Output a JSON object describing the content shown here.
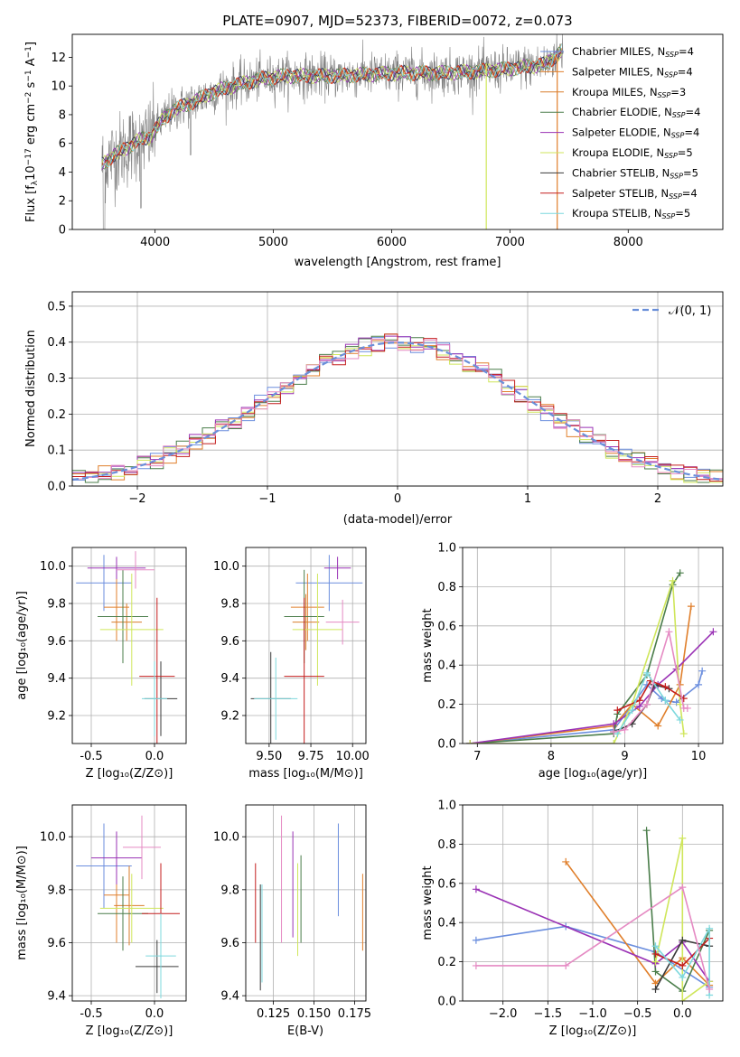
{
  "title": "PLATE=0907, MJD=52373, FIBERID=0072, z=0.073",
  "colors": {
    "gray": "#808080",
    "cms": "#6b8ede",
    "sms": "#e07f2b",
    "kms": "#d97e2b",
    "ce": "#4a7d4a",
    "se": "#9a32b5",
    "ke": "#cfe65b",
    "cs": "#3a3a3a",
    "ss": "#c41e1e",
    "ks": "#7dd8dd",
    "pink": "#e58ac3",
    "dash": "#6a8fd9"
  },
  "labels": {
    "p1_x": "wavelength [Angstrom, rest frame]",
    "p1_y_html": "Flux [f<tspan baseline-shift='-30%' font-size='9px'>λ</tspan>10<tspan baseline-shift='40%' font-size='9px'>−17</tspan> erg cm<tspan baseline-shift='40%' font-size='9px'>−2</tspan> s<tspan baseline-shift='40%' font-size='9px'>−1</tspan> A<tspan baseline-shift='40%' font-size='9px'>−1</tspan>]",
    "p2_x": "(data-model)/error",
    "p2_y": "Normed distribution",
    "gauss_legend": "𝒩(0, 1)",
    "z_x": "Z [log₁₀(Z/Z⊙)]",
    "mass_x": "mass [log₁₀(M/M⊙)]",
    "age_y": "age  [log₁₀(age/yr)]",
    "age_x": "age  [log₁₀(age/yr)]",
    "mass_y": "mass [log₁₀(M/M⊙)]",
    "mw_y": "mass weight",
    "ebv_x": "E(B-V)"
  },
  "legend": [
    {
      "text": "Chabrier MILES, N",
      "sub": "SSP",
      "tail": "=4",
      "color": "cms"
    },
    {
      "text": "Salpeter MILES, N",
      "sub": "SSP",
      "tail": "=4",
      "color": "sms"
    },
    {
      "text": "Kroupa MILES, N",
      "sub": "SSP",
      "tail": "=3",
      "color": "kms"
    },
    {
      "text": "Chabrier ELODIE, N",
      "sub": "SSP",
      "tail": "=4",
      "color": "ce"
    },
    {
      "text": "Salpeter ELODIE, N",
      "sub": "SSP",
      "tail": "=4",
      "color": "se"
    },
    {
      "text": "Kroupa ELODIE, N",
      "sub": "SSP",
      "tail": "=5",
      "color": "ke"
    },
    {
      "text": "Chabrier STELIB, N",
      "sub": "SSP",
      "tail": "=5",
      "color": "cs"
    },
    {
      "text": "Salpeter STELIB, N",
      "sub": "SSP",
      "tail": "=4",
      "color": "ss"
    },
    {
      "text": "Kroupa STELIB, N",
      "sub": "SSP",
      "tail": "=5",
      "color": "ks"
    }
  ],
  "chart_data": [
    {
      "type": "line",
      "title": "PLATE=0907, MJD=52373, FIBERID=0072, z=0.073",
      "xlim": [
        3300,
        8800
      ],
      "ylim": [
        0,
        13.6
      ],
      "xticks": [
        4000,
        5000,
        6000,
        7000,
        8000
      ],
      "yticks": [
        0,
        2,
        4,
        6,
        8,
        10,
        12
      ],
      "spectrum_continuum": {
        "x": [
          3550,
          3650,
          3750,
          3850,
          3950,
          4050,
          4150,
          4300,
          4500,
          4700,
          4900,
          5100,
          5300,
          5500,
          5800,
          6100,
          6400,
          6700,
          7000,
          7300,
          7450
        ],
        "y": [
          4.5,
          5.2,
          5.6,
          6.2,
          6.4,
          7.5,
          8.3,
          8.8,
          9.6,
          10.1,
          10.5,
          10.7,
          10.7,
          10.7,
          10.8,
          10.9,
          10.9,
          11.0,
          11.2,
          11.5,
          12.5
        ]
      }
    },
    {
      "type": "histogram",
      "xlim": [
        -2.5,
        2.5
      ],
      "ylim": [
        0,
        0.54
      ],
      "xticks": [
        -2,
        -1,
        0,
        1,
        2
      ],
      "yticks": [
        0.0,
        0.1,
        0.2,
        0.3,
        0.4,
        0.5
      ],
      "bin_width": 0.1,
      "gaussian": {
        "mean": 0,
        "sigma": 1
      }
    },
    {
      "type": "scatter",
      "xlim": [
        -0.65,
        0.25
      ],
      "ylim": [
        9.05,
        10.1
      ],
      "xticks": [
        -0.5,
        0.0
      ],
      "yticks": [
        9.2,
        9.4,
        9.6,
        9.8,
        10.0
      ],
      "points": [
        {
          "c": "cms",
          "x": -0.4,
          "xe": 0.22,
          "y": 9.91,
          "ye": 0.15
        },
        {
          "c": "sms",
          "x": -0.3,
          "xe": 0.1,
          "y": 9.78,
          "ye": 0.18
        },
        {
          "c": "kms",
          "x": -0.22,
          "xe": 0.12,
          "y": 9.7,
          "ye": 0.1
        },
        {
          "c": "ce",
          "x": -0.25,
          "xe": 0.2,
          "y": 9.73,
          "ye": 0.25
        },
        {
          "c": "se",
          "x": -0.3,
          "xe": 0.23,
          "y": 9.99,
          "ye": 0.06
        },
        {
          "c": "ke",
          "x": -0.18,
          "xe": 0.25,
          "y": 9.66,
          "ye": 0.3
        },
        {
          "c": "cs",
          "x": 0.05,
          "xe": 0.13,
          "y": 9.29,
          "ye": 0.2
        },
        {
          "c": "ss",
          "x": 0.02,
          "xe": 0.14,
          "y": 9.41,
          "ye": 0.42
        },
        {
          "c": "ks",
          "x": 0.0,
          "xe": 0.1,
          "y": 9.29,
          "ye": 0.2
        },
        {
          "c": "pink",
          "x": -0.15,
          "xe": 0.15,
          "y": 9.98,
          "ye": 0.1
        }
      ]
    },
    {
      "type": "scatter",
      "xlim": [
        9.36,
        10.08
      ],
      "ylim": [
        9.05,
        10.1
      ],
      "xticks": [
        9.5,
        9.75,
        10.0
      ],
      "yticks": [
        9.2,
        9.4,
        9.6,
        9.8,
        10.0
      ],
      "points": [
        {
          "c": "cms",
          "x": 9.86,
          "xe": 0.2,
          "y": 9.91,
          "ye": 0.15
        },
        {
          "c": "sms",
          "x": 9.73,
          "xe": 0.1,
          "y": 9.78,
          "ye": 0.18
        },
        {
          "c": "kms",
          "x": 9.72,
          "xe": 0.08,
          "y": 9.7,
          "ye": 0.15
        },
        {
          "c": "ce",
          "x": 9.71,
          "xe": 0.12,
          "y": 9.73,
          "ye": 0.25
        },
        {
          "c": "se",
          "x": 9.91,
          "xe": 0.08,
          "y": 9.99,
          "ye": 0.06
        },
        {
          "c": "ke",
          "x": 9.79,
          "xe": 0.15,
          "y": 9.66,
          "ye": 0.3
        },
        {
          "c": "cs",
          "x": 9.51,
          "xe": 0.12,
          "y": 9.29,
          "ye": 0.25
        },
        {
          "c": "ss",
          "x": 9.71,
          "xe": 0.12,
          "y": 9.41,
          "ye": 0.42
        },
        {
          "c": "ks",
          "x": 9.54,
          "xe": 0.13,
          "y": 9.29,
          "ye": 0.22
        },
        {
          "c": "pink",
          "x": 9.94,
          "xe": 0.1,
          "y": 9.7,
          "ye": 0.12
        }
      ]
    },
    {
      "type": "line",
      "xlim": [
        6.8,
        10.33
      ],
      "ylim": [
        0,
        1.0
      ],
      "xticks": [
        7,
        8,
        9,
        10
      ],
      "yticks": [
        0.0,
        0.2,
        0.4,
        0.6,
        0.8,
        1.0
      ],
      "series": [
        {
          "c": "cms",
          "x": [
            6.9,
            8.85,
            9.3,
            9.5,
            9.55,
            9.7,
            10.0,
            10.05
          ],
          "y": [
            0.0,
            0.07,
            0.3,
            0.23,
            0.22,
            0.21,
            0.3,
            0.37
          ]
        },
        {
          "c": "sms",
          "x": [
            6.9,
            8.85,
            9.1,
            9.45,
            9.75,
            9.9
          ],
          "y": [
            0.0,
            0.09,
            0.2,
            0.09,
            0.3,
            0.7
          ]
        },
        {
          "c": "ce",
          "x": [
            6.9,
            8.85,
            8.9,
            9.3,
            9.65,
            9.75
          ],
          "y": [
            0.0,
            0.05,
            0.15,
            0.35,
            0.81,
            0.87
          ]
        },
        {
          "c": "se",
          "x": [
            6.9,
            8.85,
            9.2,
            9.45,
            9.7,
            10.2
          ],
          "y": [
            0.0,
            0.1,
            0.19,
            0.3,
            0.38,
            0.57
          ]
        },
        {
          "c": "ke",
          "x": [
            6.9,
            8.85,
            9.1,
            9.65,
            9.75,
            9.8
          ],
          "y": [
            0.0,
            0.0,
            0.2,
            0.83,
            0.2,
            0.05
          ]
        },
        {
          "c": "cs",
          "x": [
            8.85,
            9.1,
            9.3,
            9.4,
            9.6
          ],
          "y": [
            0.06,
            0.1,
            0.2,
            0.3,
            0.28
          ]
        },
        {
          "c": "ss",
          "x": [
            8.9,
            9.2,
            9.35,
            9.55,
            9.8
          ],
          "y": [
            0.17,
            0.22,
            0.32,
            0.29,
            0.23
          ]
        },
        {
          "c": "ks",
          "x": [
            8.9,
            9.1,
            9.3,
            9.55,
            9.75
          ],
          "y": [
            0.05,
            0.17,
            0.36,
            0.22,
            0.12
          ]
        },
        {
          "c": "pink",
          "x": [
            8.85,
            9.0,
            9.3,
            9.6,
            9.8,
            9.85
          ],
          "y": [
            0.06,
            0.07,
            0.2,
            0.57,
            0.18,
            0.18
          ]
        }
      ]
    },
    {
      "type": "scatter",
      "xlim": [
        -0.65,
        0.25
      ],
      "ylim": [
        9.38,
        10.12
      ],
      "xticks": [
        -0.5,
        0.0
      ],
      "yticks": [
        9.4,
        9.6,
        9.8,
        10.0
      ],
      "points": [
        {
          "c": "cms",
          "x": -0.4,
          "xe": 0.22,
          "y": 9.89,
          "ye": 0.16
        },
        {
          "c": "sms",
          "x": -0.3,
          "xe": 0.1,
          "y": 9.78,
          "ye": 0.18
        },
        {
          "c": "kms",
          "x": -0.2,
          "xe": 0.12,
          "y": 9.74,
          "ye": 0.15
        },
        {
          "c": "ce",
          "x": -0.25,
          "xe": 0.2,
          "y": 9.71,
          "ye": 0.14
        },
        {
          "c": "se",
          "x": -0.3,
          "xe": 0.2,
          "y": 9.92,
          "ye": 0.1
        },
        {
          "c": "ke",
          "x": -0.18,
          "xe": 0.25,
          "y": 9.73,
          "ye": 0.13
        },
        {
          "c": "cs",
          "x": 0.02,
          "xe": 0.17,
          "y": 9.51,
          "ye": 0.1
        },
        {
          "c": "ss",
          "x": 0.05,
          "xe": 0.15,
          "y": 9.71,
          "ye": 0.19
        },
        {
          "c": "ks",
          "x": 0.05,
          "xe": 0.12,
          "y": 9.55,
          "ye": 0.16
        },
        {
          "c": "pink",
          "x": -0.1,
          "xe": 0.15,
          "y": 9.96,
          "ye": 0.12
        }
      ]
    },
    {
      "type": "errorbar",
      "xlim": [
        0.108,
        0.182
      ],
      "ylim": [
        9.38,
        10.12
      ],
      "xticks": [
        0.125,
        0.15,
        0.175
      ],
      "yticks": [
        9.4,
        9.6,
        9.8,
        10.0
      ],
      "bars": [
        {
          "c": "ss",
          "x": 0.114,
          "y0": 9.6,
          "y1": 9.9
        },
        {
          "c": "cs",
          "x": 0.117,
          "y0": 9.42,
          "y1": 9.82
        },
        {
          "c": "ks",
          "x": 0.118,
          "y0": 9.45,
          "y1": 9.82
        },
        {
          "c": "pink",
          "x": 0.13,
          "y0": 9.6,
          "y1": 10.08
        },
        {
          "c": "se",
          "x": 0.137,
          "y0": 9.62,
          "y1": 10.02
        },
        {
          "c": "ke",
          "x": 0.14,
          "y0": 9.55,
          "y1": 9.9
        },
        {
          "c": "ce",
          "x": 0.142,
          "y0": 9.6,
          "y1": 9.93
        },
        {
          "c": "cms",
          "x": 0.165,
          "y0": 9.7,
          "y1": 10.05
        },
        {
          "c": "sms",
          "x": 0.18,
          "y0": 9.57,
          "y1": 9.86
        }
      ]
    },
    {
      "type": "line",
      "xlim": [
        -2.45,
        0.45
      ],
      "ylim": [
        0,
        1.0
      ],
      "xticks": [
        -2.0,
        -1.5,
        -1.0,
        -0.5,
        0.0
      ],
      "yticks": [
        0.0,
        0.2,
        0.4,
        0.6,
        0.8,
        1.0
      ],
      "series": [
        {
          "c": "cms",
          "x": [
            -2.3,
            -1.3,
            -0.3,
            0.3
          ],
          "y": [
            0.31,
            0.38,
            0.25,
            0.07
          ]
        },
        {
          "c": "sms",
          "x": [
            -1.3,
            -0.3,
            0.0,
            0.3
          ],
          "y": [
            0.71,
            0.09,
            0.22,
            0.08
          ]
        },
        {
          "c": "ce",
          "x": [
            -0.4,
            -0.3,
            0.0,
            0.3
          ],
          "y": [
            0.87,
            0.15,
            0.05,
            0.36
          ]
        },
        {
          "c": "se",
          "x": [
            -2.3,
            -0.3,
            0.0,
            0.3
          ],
          "y": [
            0.57,
            0.19,
            0.3,
            0.1
          ]
        },
        {
          "c": "ke",
          "x": [
            -0.3,
            0.0,
            0.0,
            0.3
          ],
          "y": [
            0.2,
            0.83,
            0.0,
            0.1
          ]
        },
        {
          "c": "cs",
          "x": [
            -0.3,
            0.0,
            0.3
          ],
          "y": [
            0.06,
            0.31,
            0.28
          ]
        },
        {
          "c": "ss",
          "x": [
            -0.3,
            0.0,
            0.3
          ],
          "y": [
            0.24,
            0.18,
            0.32
          ]
        },
        {
          "c": "ks",
          "x": [
            -0.3,
            0.0,
            0.3,
            0.3
          ],
          "y": [
            0.28,
            0.12,
            0.37,
            0.03
          ]
        },
        {
          "c": "pink",
          "x": [
            -2.3,
            -1.3,
            0.0,
            0.3
          ],
          "y": [
            0.18,
            0.18,
            0.58,
            0.06
          ]
        }
      ]
    }
  ]
}
